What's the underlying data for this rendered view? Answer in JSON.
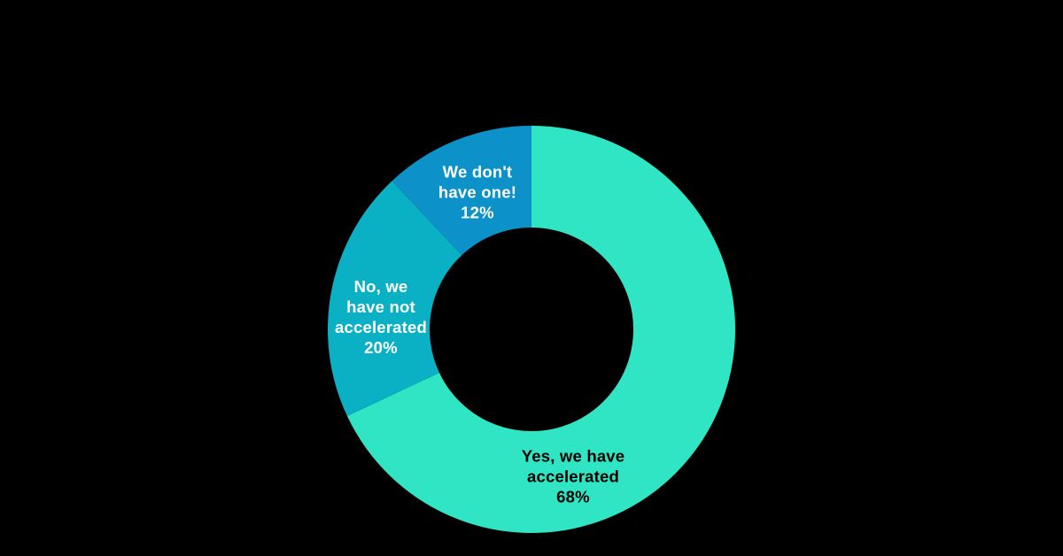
{
  "background_color": "#000000",
  "chart_data": {
    "type": "pie",
    "subtype": "donut",
    "title": "",
    "legend_position": "none",
    "labels_position": "inside",
    "rotation": "clockwise-from-top",
    "donut_hole_ratio": 0.5,
    "categories": [
      "Yes, we have accelerated",
      "No, we have not accelerated",
      "We don't have one!"
    ],
    "values": [
      68,
      20,
      12
    ],
    "slices": [
      {
        "label": "Yes, we have accelerated",
        "value": 68,
        "pct_label": "68%",
        "color": "#2fe5c4",
        "label_text_color": "#000000",
        "display": "Yes, we have\naccelerated\n68%"
      },
      {
        "label": "No, we have not accelerated",
        "value": 20,
        "pct_label": "20%",
        "color": "#0ab1c5",
        "label_text_color": "#ffffff",
        "display": "No, we\nhave not\naccelerated\n20%"
      },
      {
        "label": "We don't have one!",
        "value": 12,
        "pct_label": "12%",
        "color": "#0c92c8",
        "label_text_color": "#ffffff",
        "display": "We don't\nhave one!\n12%"
      }
    ]
  }
}
